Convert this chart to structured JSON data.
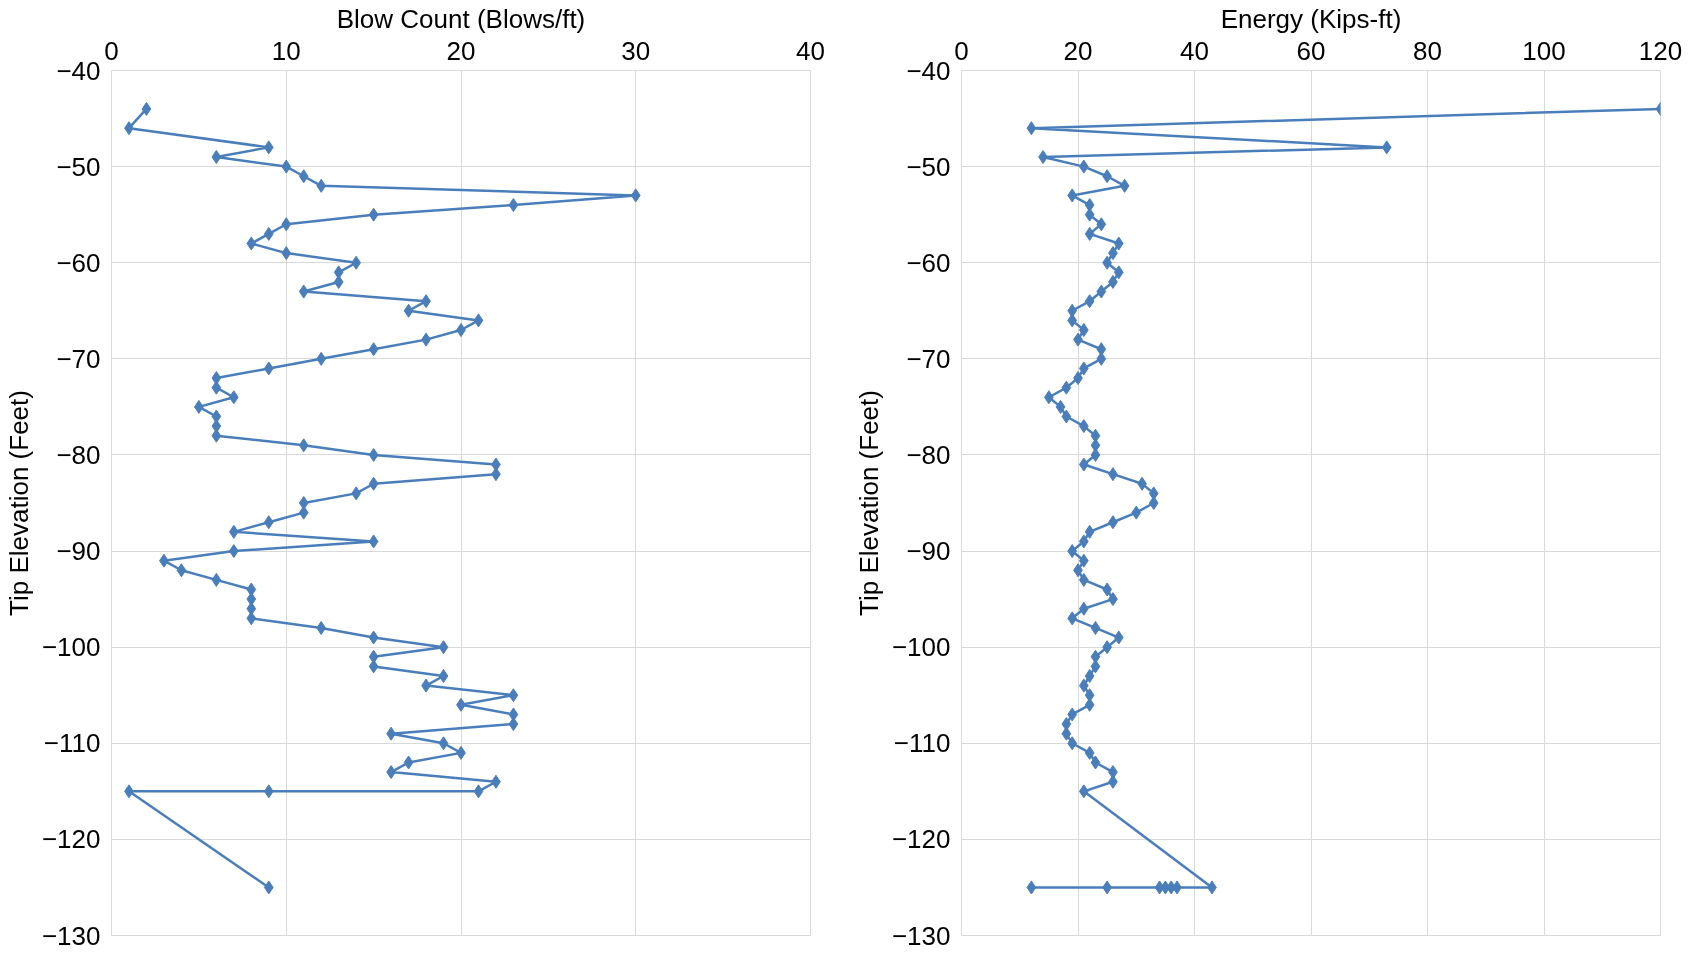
{
  "chart_data": [
    {
      "type": "line",
      "xlabel": "Blow Count (Blows/ft)",
      "ylabel": "Tip Elevation (Feet)",
      "xlim": [
        0,
        40
      ],
      "xticks": [
        0,
        10,
        20,
        30,
        40
      ],
      "ylim": [
        -130,
        -40
      ],
      "yticks": [
        -130,
        -120,
        -110,
        -100,
        -90,
        -80,
        -70,
        -60,
        -50,
        -40
      ],
      "grid": true,
      "marker": "diamond",
      "line_style": "solid",
      "series": [
        {
          "color": "#4a7ebb",
          "x": [
            2,
            1,
            9,
            6,
            10,
            11,
            12,
            30,
            23,
            15,
            10,
            9,
            8,
            10,
            14,
            13,
            13,
            11,
            18,
            17,
            21,
            20,
            18,
            15,
            12,
            9,
            6,
            6,
            7,
            5,
            6,
            6,
            6,
            11,
            15,
            22,
            22,
            15,
            14,
            11,
            11,
            9,
            7,
            15,
            7,
            3,
            4,
            6,
            8,
            8,
            8,
            8,
            12,
            15,
            19,
            15,
            15,
            19,
            18,
            23,
            20,
            23,
            23,
            16,
            19,
            20,
            17,
            16,
            22,
            21,
            9,
            1,
            9
          ],
          "values": [
            -44,
            -46,
            -48,
            -49,
            -50,
            -51,
            -52,
            -53,
            -54,
            -55,
            -56,
            -57,
            -58,
            -59,
            -60,
            -61,
            -62,
            -63,
            -64,
            -65,
            -66,
            -67,
            -68,
            -69,
            -70,
            -71,
            -72,
            -73,
            -74,
            -75,
            -76,
            -77,
            -78,
            -79,
            -80,
            -81,
            -82,
            -83,
            -84,
            -85,
            -86,
            -87,
            -88,
            -89,
            -90,
            -91,
            -92,
            -93,
            -94,
            -95,
            -96,
            -97,
            -98,
            -99,
            -100,
            -101,
            -102,
            -103,
            -104,
            -105,
            -106,
            -107,
            -108,
            -109,
            -110,
            -111,
            -112,
            -113,
            -114,
            -115,
            -115,
            -115,
            -125
          ]
        }
      ]
    },
    {
      "type": "line",
      "xlabel": "Energy (Kips-ft)",
      "ylabel": "Tip Elevation (Feet)",
      "xlim": [
        0,
        120
      ],
      "xticks": [
        0,
        20,
        40,
        60,
        80,
        100,
        120
      ],
      "ylim": [
        -130,
        -40
      ],
      "yticks": [
        -130,
        -120,
        -110,
        -100,
        -90,
        -80,
        -70,
        -60,
        -50,
        -40
      ],
      "grid": true,
      "marker": "diamond",
      "line_style": "solid",
      "series": [
        {
          "color": "#4a7ebb",
          "x": [
            120,
            12,
            73,
            14,
            21,
            25,
            28,
            19,
            22,
            22,
            24,
            22,
            27,
            26,
            25,
            27,
            26,
            24,
            22,
            19,
            19,
            21,
            20,
            24,
            24,
            21,
            20,
            18,
            15,
            17,
            18,
            21,
            23,
            23,
            23,
            21,
            26,
            31,
            33,
            33,
            30,
            26,
            22,
            21,
            19,
            21,
            20,
            21,
            25,
            26,
            21,
            19,
            23,
            27,
            25,
            23,
            23,
            22,
            21,
            22,
            22,
            19,
            18,
            18,
            19,
            22,
            23,
            26,
            26,
            21,
            43,
            37,
            36,
            35,
            34,
            25,
            12
          ],
          "values": [
            -44,
            -46,
            -48,
            -49,
            -50,
            -51,
            -52,
            -53,
            -54,
            -55,
            -56,
            -57,
            -58,
            -59,
            -60,
            -61,
            -62,
            -63,
            -64,
            -65,
            -66,
            -67,
            -68,
            -69,
            -70,
            -71,
            -72,
            -73,
            -74,
            -75,
            -76,
            -77,
            -78,
            -79,
            -80,
            -81,
            -82,
            -83,
            -84,
            -85,
            -86,
            -87,
            -88,
            -89,
            -90,
            -91,
            -92,
            -93,
            -94,
            -95,
            -96,
            -97,
            -98,
            -99,
            -100,
            -101,
            -102,
            -103,
            -104,
            -105,
            -106,
            -107,
            -108,
            -109,
            -110,
            -111,
            -112,
            -113,
            -114,
            -115,
            -125,
            -125,
            -125,
            -125,
            -125,
            -125,
            -125
          ]
        }
      ]
    }
  ]
}
